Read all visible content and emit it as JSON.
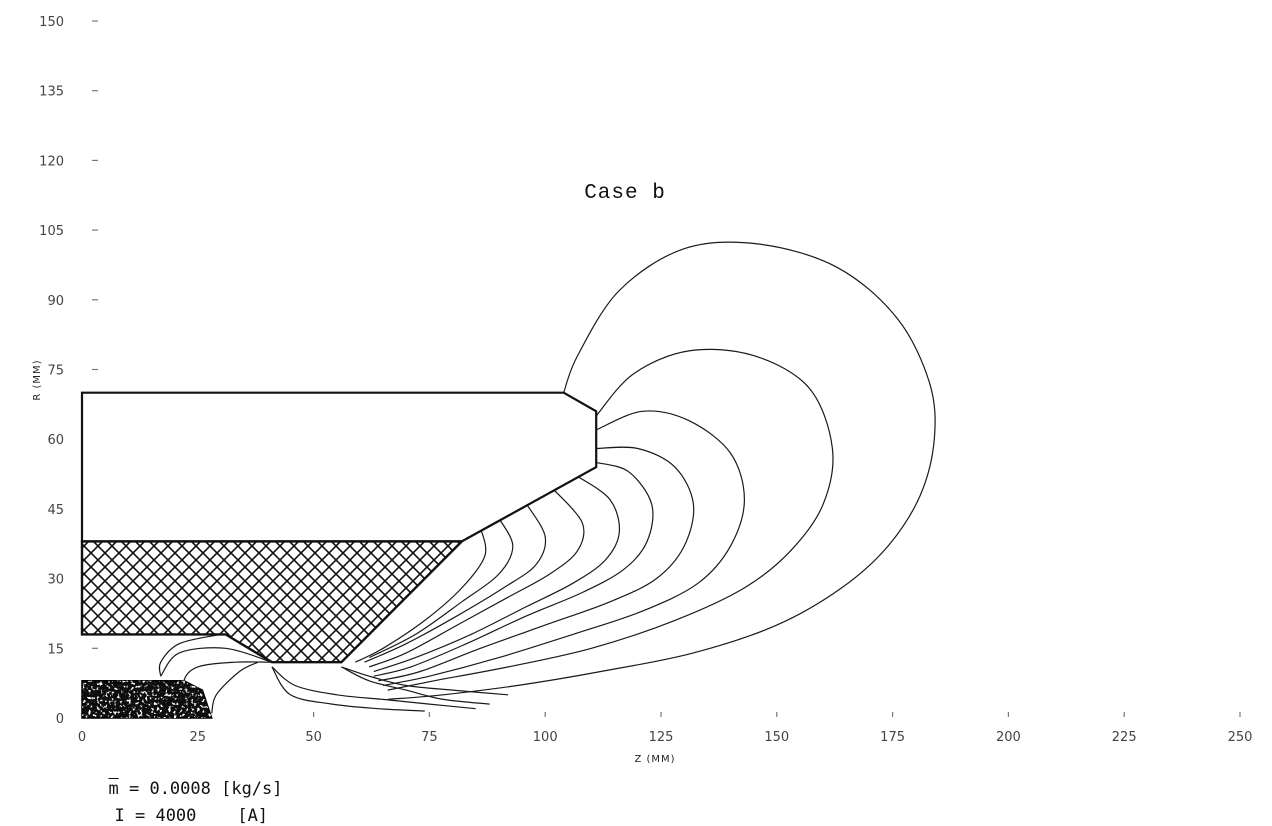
{
  "chart_data": {
    "type": "line",
    "title": "Case b",
    "xlabel": "Z (MM)",
    "ylabel": "R (MM)",
    "xlim": [
      0,
      250
    ],
    "ylim": [
      0,
      150
    ],
    "x_ticks": [
      0,
      25,
      50,
      75,
      100,
      125,
      150,
      175,
      200,
      225,
      250
    ],
    "y_ticks": [
      0,
      15,
      30,
      45,
      60,
      75,
      90,
      105,
      120,
      135,
      150
    ],
    "grid": false,
    "geometry": {
      "nozzle": [
        [
          0,
          70
        ],
        [
          104,
          70
        ],
        [
          111,
          66
        ],
        [
          111,
          54
        ],
        [
          82,
          38
        ],
        [
          0,
          38
        ]
      ],
      "insulator": [
        [
          0,
          38
        ],
        [
          82,
          38
        ],
        [
          56,
          12
        ],
        [
          41,
          12
        ],
        [
          31,
          18
        ],
        [
          0,
          18
        ]
      ],
      "cathode": [
        [
          0,
          0
        ],
        [
          0,
          8
        ],
        [
          22,
          8
        ],
        [
          26,
          6
        ],
        [
          28,
          0
        ]
      ]
    },
    "field_lines": [
      {
        "points": [
          [
            104,
            70
          ],
          [
            107,
            78
          ],
          [
            116,
            92
          ],
          [
            130,
            101
          ],
          [
            146,
            102
          ],
          [
            163,
            97
          ],
          [
            176,
            86
          ],
          [
            183,
            72
          ],
          [
            184,
            60
          ],
          [
            181,
            48
          ],
          [
            174,
            37
          ],
          [
            164,
            28
          ],
          [
            150,
            20
          ],
          [
            132,
            14
          ],
          [
            112,
            10
          ],
          [
            94,
            7
          ],
          [
            78,
            5
          ],
          [
            66,
            4
          ]
        ]
      },
      {
        "points": [
          [
            111,
            65
          ],
          [
            119,
            74
          ],
          [
            131,
            79
          ],
          [
            145,
            78
          ],
          [
            157,
            71
          ],
          [
            162,
            58
          ],
          [
            160,
            46
          ],
          [
            153,
            36
          ],
          [
            143,
            28
          ],
          [
            128,
            21
          ],
          [
            110,
            15
          ],
          [
            92,
            11
          ],
          [
            76,
            8
          ],
          [
            66,
            6
          ]
        ]
      },
      {
        "points": [
          [
            111,
            62
          ],
          [
            121,
            66
          ],
          [
            131,
            64
          ],
          [
            140,
            57
          ],
          [
            143,
            47
          ],
          [
            140,
            37
          ],
          [
            133,
            29
          ],
          [
            121,
            23
          ],
          [
            106,
            18
          ],
          [
            90,
            13
          ],
          [
            75,
            9
          ],
          [
            65,
            7
          ]
        ]
      },
      {
        "points": [
          [
            111,
            58
          ],
          [
            120,
            58
          ],
          [
            128,
            54
          ],
          [
            132,
            46
          ],
          [
            130,
            37
          ],
          [
            124,
            30
          ],
          [
            114,
            25
          ],
          [
            100,
            20
          ],
          [
            86,
            15
          ],
          [
            73,
            10
          ],
          [
            64,
            8
          ]
        ]
      },
      {
        "points": [
          [
            111,
            55
          ],
          [
            118,
            53
          ],
          [
            123,
            46
          ],
          [
            122,
            38
          ],
          [
            117,
            32
          ],
          [
            108,
            27
          ],
          [
            96,
            22
          ],
          [
            83,
            16
          ],
          [
            71,
            11
          ],
          [
            63,
            9
          ]
        ]
      },
      {
        "points": [
          [
            107,
            52
          ],
          [
            114,
            47
          ],
          [
            116,
            40
          ],
          [
            113,
            34
          ],
          [
            106,
            29
          ],
          [
            96,
            24
          ],
          [
            84,
            18
          ],
          [
            72,
            13
          ],
          [
            63,
            10
          ]
        ]
      },
      {
        "points": [
          [
            102,
            49
          ],
          [
            108,
            42
          ],
          [
            107,
            36
          ],
          [
            101,
            31
          ],
          [
            92,
            26
          ],
          [
            81,
            20
          ],
          [
            70,
            14
          ],
          [
            62,
            11
          ]
        ]
      },
      {
        "points": [
          [
            96,
            46
          ],
          [
            100,
            39
          ],
          [
            98,
            33
          ],
          [
            91,
            28
          ],
          [
            81,
            22
          ],
          [
            70,
            16
          ],
          [
            61,
            12
          ]
        ]
      },
      {
        "points": [
          [
            90,
            43
          ],
          [
            93,
            37
          ],
          [
            90,
            31
          ],
          [
            82,
            25
          ],
          [
            72,
            18
          ],
          [
            62,
            13
          ]
        ]
      },
      {
        "points": [
          [
            86,
            41
          ],
          [
            87,
            35
          ],
          [
            82,
            28
          ],
          [
            74,
            21
          ],
          [
            65,
            15
          ],
          [
            59,
            12
          ]
        ]
      },
      {
        "points": [
          [
            56,
            11
          ],
          [
            62,
            9
          ],
          [
            70,
            7
          ],
          [
            80,
            6
          ],
          [
            92,
            5
          ]
        ]
      },
      {
        "points": [
          [
            56,
            11
          ],
          [
            62,
            8
          ],
          [
            70,
            6
          ],
          [
            78,
            4
          ],
          [
            88,
            3
          ]
        ]
      },
      {
        "points": [
          [
            41,
            11
          ],
          [
            46,
            7
          ],
          [
            55,
            5
          ],
          [
            65,
            4
          ],
          [
            75,
            3
          ],
          [
            85,
            2
          ]
        ]
      },
      {
        "points": [
          [
            41,
            11
          ],
          [
            45,
            5
          ],
          [
            54,
            3
          ],
          [
            64,
            2
          ],
          [
            74,
            1.5
          ]
        ]
      },
      {
        "points": [
          [
            38,
            12
          ],
          [
            34,
            10
          ],
          [
            29,
            5
          ],
          [
            28,
            1
          ]
        ]
      },
      {
        "points": [
          [
            41,
            12
          ],
          [
            33,
            12
          ],
          [
            25,
            11
          ],
          [
            22,
            8
          ],
          [
            23,
            4
          ]
        ]
      },
      {
        "points": [
          [
            41,
            12
          ],
          [
            31,
            15
          ],
          [
            21,
            14
          ],
          [
            17,
            9
          ]
        ]
      },
      {
        "points": [
          [
            30,
            18
          ],
          [
            21,
            16
          ],
          [
            17,
            12
          ],
          [
            17,
            9
          ]
        ]
      }
    ],
    "annotations": [
      {
        "symbol": "m",
        "rest": "= 0.0008 [kg/s]"
      },
      {
        "symbol": "I",
        "rest": "= 4000    [A]"
      }
    ]
  }
}
